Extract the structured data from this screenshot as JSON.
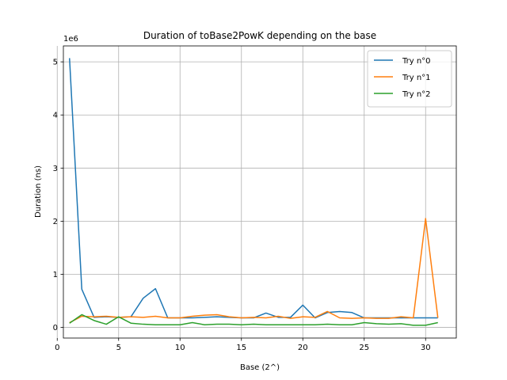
{
  "chart_data": {
    "type": "line",
    "title": "Duration of toBase2PowK depending on the base",
    "xlabel": "Base (2^)",
    "ylabel": "Duration (ns)",
    "y_offset_text": "1e6",
    "xlim": [
      0.5,
      32.5
    ],
    "ylim": [
      -200000,
      5300000
    ],
    "x_ticks": [
      0,
      5,
      10,
      15,
      20,
      25,
      30
    ],
    "y_ticks": [
      0,
      1,
      2,
      3,
      4,
      5
    ],
    "y_scale": 1000000,
    "grid": true,
    "legend_position": "top-right",
    "x": [
      1,
      2,
      3,
      4,
      5,
      6,
      7,
      8,
      9,
      10,
      11,
      12,
      13,
      14,
      15,
      16,
      17,
      18,
      19,
      20,
      21,
      22,
      23,
      24,
      25,
      26,
      27,
      28,
      29,
      30,
      31
    ],
    "series": [
      {
        "name": "Try n°0",
        "color": "#1f77b4",
        "values": [
          5070000,
          720000,
          190000,
          200000,
          190000,
          200000,
          550000,
          730000,
          180000,
          180000,
          180000,
          190000,
          200000,
          190000,
          180000,
          180000,
          270000,
          190000,
          190000,
          420000,
          180000,
          280000,
          300000,
          280000,
          180000,
          180000,
          180000,
          180000,
          180000,
          180000,
          180000
        ]
      },
      {
        "name": "Try n°1",
        "color": "#ff7f0e",
        "values": [
          90000,
          210000,
          200000,
          210000,
          190000,
          200000,
          190000,
          210000,
          180000,
          180000,
          210000,
          230000,
          240000,
          200000,
          180000,
          190000,
          180000,
          210000,
          170000,
          200000,
          190000,
          300000,
          180000,
          170000,
          180000,
          170000,
          170000,
          200000,
          180000,
          2050000,
          180000
        ]
      },
      {
        "name": "Try n°2",
        "color": "#2ca02c",
        "values": [
          80000,
          240000,
          130000,
          60000,
          200000,
          80000,
          60000,
          50000,
          50000,
          50000,
          90000,
          50000,
          60000,
          60000,
          50000,
          60000,
          50000,
          50000,
          50000,
          50000,
          50000,
          60000,
          50000,
          50000,
          90000,
          70000,
          60000,
          70000,
          40000,
          40000,
          90000
        ]
      }
    ]
  }
}
